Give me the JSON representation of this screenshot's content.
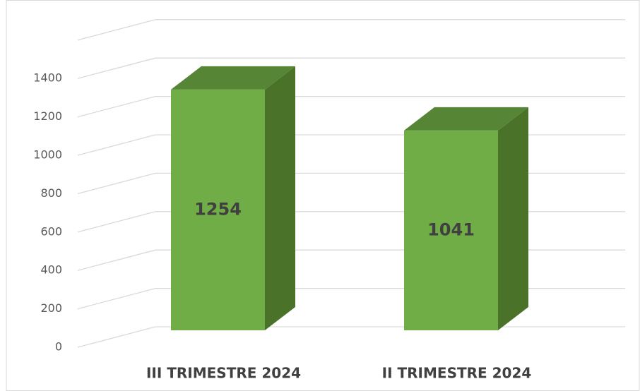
{
  "chart_data": {
    "type": "bar3d",
    "categories": [
      "III TRIMESTRE 2024",
      "II TRIMESTRE 2024"
    ],
    "values": [
      1254,
      1041
    ],
    "color": "#70ad47",
    "ylim": [
      0,
      1600
    ],
    "yticks": [
      0,
      200,
      400,
      600,
      800,
      1000,
      1200,
      1400
    ],
    "grid": true
  }
}
